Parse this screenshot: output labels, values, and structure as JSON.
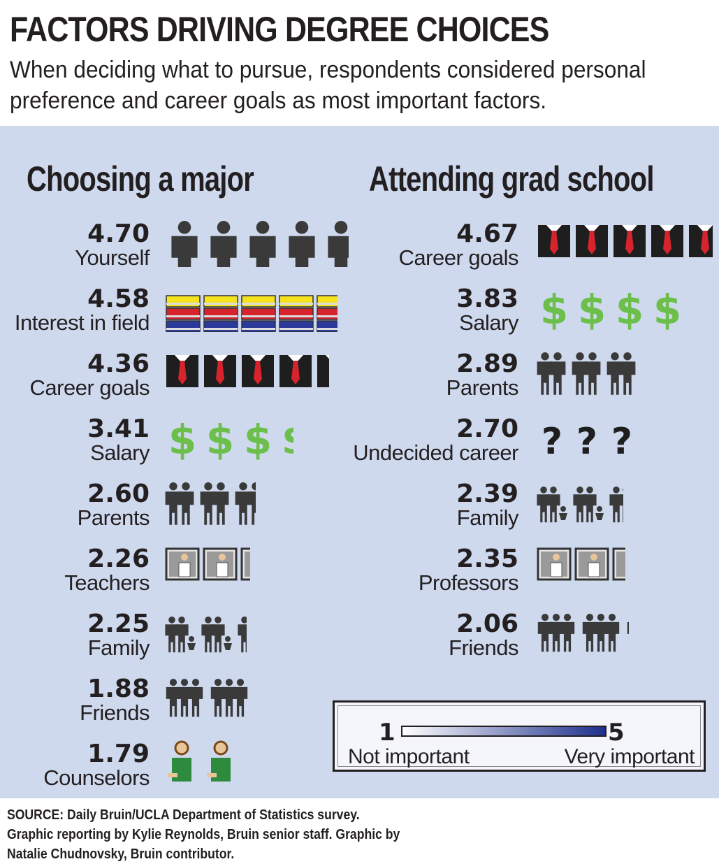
{
  "title": "FACTORS DRIVING DEGREE CHOICES",
  "subtitle": "When deciding what to pursue, respondents considered personal preference and career goals as most important factors.",
  "source": "SOURCE: Daily Bruin/UCLA Department of Statistics survey.  Graphic reporting by Kylie Reynolds, Bruin senior staff. Graphic by Natalie Chudnovsky, Bruin contributor.",
  "legend": {
    "min_label": "1",
    "max_label": "5",
    "low_text": "Not important",
    "high_text": "Very important"
  },
  "colors": {
    "panel_bg": "#cfd9ee",
    "money_green": "#6cbf4b",
    "icon_dark": "#3a3a3a",
    "tie_red": "#d7242c"
  },
  "chart_data": [
    {
      "type": "bar",
      "title": "Choosing a major",
      "scale": [
        1,
        5
      ],
      "rows": [
        {
          "label": "Yourself",
          "value": 4.7,
          "value_text": "4.70",
          "icon": "person-icon"
        },
        {
          "label": "Interest in field",
          "value": 4.58,
          "value_text": "4.58",
          "icon": "books-icon"
        },
        {
          "label": "Career goals",
          "value": 4.36,
          "value_text": "4.36",
          "icon": "suit-tie-icon"
        },
        {
          "label": "Salary",
          "value": 3.41,
          "value_text": "3.41",
          "icon": "dollar-icon"
        },
        {
          "label": "Parents",
          "value": 2.6,
          "value_text": "2.60",
          "icon": "parents-icon"
        },
        {
          "label": "Teachers",
          "value": 2.26,
          "value_text": "2.26",
          "icon": "teacher-icon"
        },
        {
          "label": "Family",
          "value": 2.25,
          "value_text": "2.25",
          "icon": "family-icon"
        },
        {
          "label": "Friends",
          "value": 1.88,
          "value_text": "1.88",
          "icon": "friends-icon"
        },
        {
          "label": "Counselors",
          "value": 1.79,
          "value_text": "1.79",
          "icon": "counselor-icon"
        }
      ]
    },
    {
      "type": "bar",
      "title": "Attending grad school",
      "scale": [
        1,
        5
      ],
      "rows": [
        {
          "label": "Career goals",
          "value": 4.67,
          "value_text": "4.67",
          "icon": "suit-tie-icon"
        },
        {
          "label": "Salary",
          "value": 3.83,
          "value_text": "3.83",
          "icon": "dollar-icon"
        },
        {
          "label": "Parents",
          "value": 2.89,
          "value_text": "2.89",
          "icon": "parents-icon"
        },
        {
          "label": "Undecided career",
          "value": 2.7,
          "value_text": "2.70",
          "icon": "question-icon"
        },
        {
          "label": "Family",
          "value": 2.39,
          "value_text": "2.39",
          "icon": "family-icon"
        },
        {
          "label": "Professors",
          "value": 2.35,
          "value_text": "2.35",
          "icon": "teacher-icon"
        },
        {
          "label": "Friends",
          "value": 2.06,
          "value_text": "2.06",
          "icon": "friends-icon"
        }
      ]
    }
  ]
}
